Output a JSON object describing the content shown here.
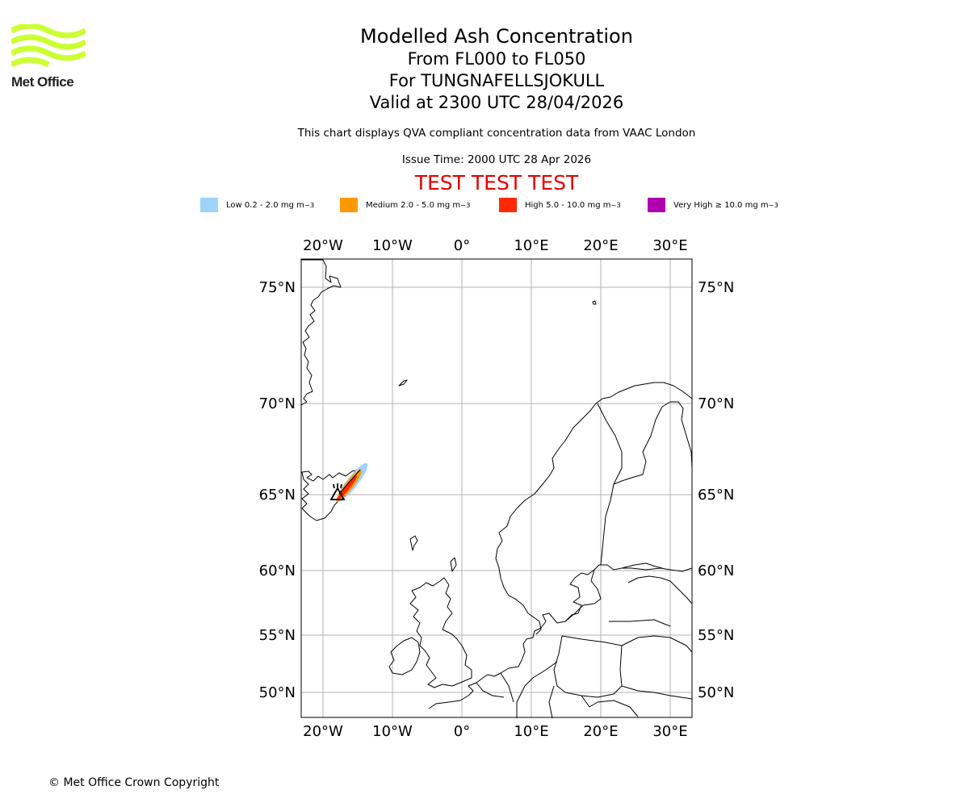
{
  "logo": {
    "text": "Met Office",
    "color": "#ccff33"
  },
  "header": {
    "title": "Modelled Ash Concentration",
    "levels": "From FL000 to FL050",
    "volcano": "For TUNGNAFELLSJOKULL",
    "valid": "Valid at 2300 UTC 28/04/2026",
    "subtitle": "This chart displays QVA compliant concentration data from VAAC London",
    "issue_time": "Issue Time: 2000 UTC 28 Apr 2026",
    "test_banner": "TEST TEST TEST",
    "test_color": "#e60000"
  },
  "legend": [
    {
      "label": "Low 0.2 - 2.0 mg m",
      "color": "#9fd3fa"
    },
    {
      "label": "Medium 2.0 - 5.0 mg m",
      "color": "#ff9900"
    },
    {
      "label": "High 5.0 - 10.0 mg m",
      "color": "#ff2a00"
    },
    {
      "label": "Very High ≥ 10.0 mg m",
      "color": "#b000b0"
    }
  ],
  "legend_unit_exponent": "−3",
  "map": {
    "lon_ticks": [
      "20°W",
      "10°W",
      "0°",
      "10°E",
      "20°E",
      "30°E"
    ],
    "lat_ticks": [
      "75°N",
      "70°N",
      "65°N",
      "60°N",
      "55°N",
      "50°N"
    ],
    "volcano_symbol": "volcano-triangle"
  },
  "footer": {
    "copyright": "© Met Office Crown Copyright"
  }
}
